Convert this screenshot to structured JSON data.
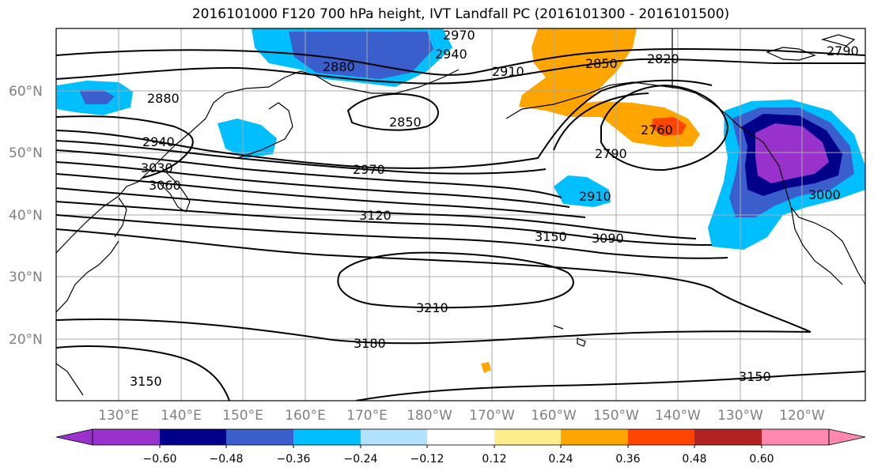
{
  "title": "2016101000 F120 700 hPa height, IVT Landfall PC (2016101300 - 2016101500)",
  "lat_labels": [
    "60°N",
    "50°N",
    "40°N",
    "30°N",
    "20°N"
  ],
  "lon_labels": [
    "130°E",
    "140°E",
    "150°E",
    "160°E",
    "170°E",
    "180°W",
    "170°W",
    "160°W",
    "150°W",
    "140°W",
    "130°W",
    "120°W"
  ],
  "contour_labels": [
    "2970",
    "2940",
    "2910",
    "2850",
    "2820",
    "2790",
    "2880",
    "2880",
    "2850",
    "2940",
    "3030",
    "3060",
    "2970",
    "2760",
    "2790",
    "2910",
    "3000",
    "3120",
    "3150",
    "3090",
    "3210",
    "3180",
    "3150",
    "3150"
  ],
  "colorbar": {
    "ticks": [
      "−0.60",
      "−0.48",
      "−0.36",
      "−0.24",
      "−0.12",
      "0.12",
      "0.24",
      "0.36",
      "0.48",
      "0.60"
    ],
    "colors": [
      "#9932cc",
      "#00008b",
      "#3a5fcd",
      "#00bfff",
      "#b0e2ff",
      "#ffffff",
      "#ffed8b",
      "#ffa500",
      "#ff4500",
      "#b22222",
      "#ff88b0",
      "#ff88b0"
    ],
    "under_color": "#9932cc",
    "over_color": "#ff88b0"
  }
}
